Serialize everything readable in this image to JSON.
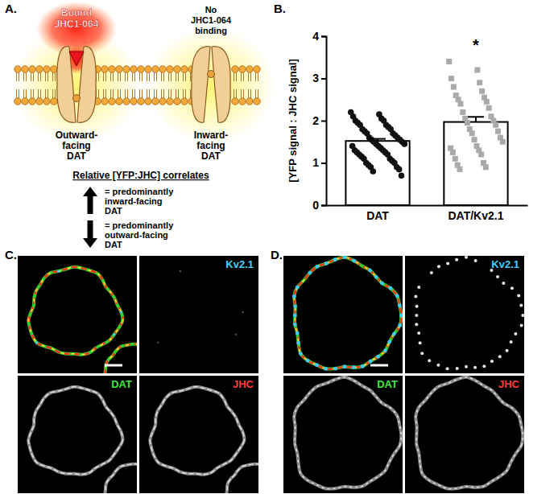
{
  "chart_data": {
    "type": "bar",
    "y_label": "[YFP signal : JHC signal]",
    "categories": [
      "DAT",
      "DAT/Kv2.1"
    ],
    "values": [
      1.52,
      1.97
    ],
    "errors": [
      0.05,
      0.12
    ],
    "points": [
      {
        "color": "#111111",
        "marker": "circle",
        "values": [
          2.2,
          2.15,
          2.1,
          2.05,
          2.0,
          2.0,
          1.95,
          1.9,
          1.9,
          1.85,
          1.8,
          1.8,
          1.75,
          1.7,
          1.7,
          1.65,
          1.6,
          1.6,
          1.55,
          1.55,
          1.5,
          1.5,
          1.45,
          1.45,
          1.4,
          1.4,
          1.35,
          1.3,
          1.3,
          1.25,
          1.25,
          1.2,
          1.2,
          1.15,
          1.1,
          1.1,
          1.05,
          1.0,
          1.0,
          0.95,
          0.9,
          0.9,
          0.85,
          0.8,
          0.7
        ]
      },
      {
        "color": "#aaaaaa",
        "marker": "square",
        "values": [
          3.4,
          3.2,
          3.0,
          2.9,
          2.8,
          2.7,
          2.6,
          2.55,
          2.5,
          2.45,
          2.4,
          2.3,
          2.2,
          2.1,
          2.05,
          2.0,
          1.95,
          1.9,
          1.8,
          1.75,
          1.7,
          1.6,
          1.55,
          1.5,
          1.4,
          1.35,
          1.3,
          1.25,
          1.2,
          1.1,
          1.0,
          0.95,
          0.9,
          0.85
        ]
      }
    ],
    "annotations": [
      {
        "text": "*",
        "category": 1
      }
    ],
    "ylim": [
      0,
      4
    ],
    "yticks": [
      0,
      1,
      2,
      3,
      4
    ],
    "grid": false
  },
  "panel_a": {
    "label": "A.",
    "left_top": [
      "Bound",
      "JHC1-064"
    ],
    "right_top": [
      "No",
      "JHC1-064",
      "binding"
    ],
    "left_bottom": [
      "Outward-",
      "facing",
      "DAT"
    ],
    "right_bottom": [
      "Inward-",
      "facing",
      "DAT"
    ],
    "caption": "Relative [YFP:JHC] correlates",
    "up": [
      "= predominantly",
      "inward-facing",
      "DAT"
    ],
    "down": [
      "= predominantly",
      "outward-facing",
      "DAT"
    ]
  },
  "panel_b": {
    "label": "B."
  },
  "panel_c": {
    "label": "C.",
    "channels": [
      "Kv2.1",
      "DAT",
      "JHC"
    ]
  },
  "panel_d": {
    "label": "D.",
    "channels": [
      "Kv2.1",
      "DAT",
      "JHC"
    ]
  }
}
